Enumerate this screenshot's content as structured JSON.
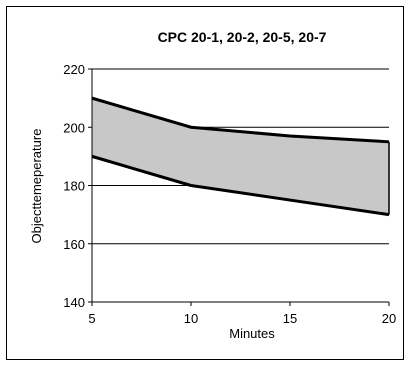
{
  "chart_data": {
    "type": "area",
    "title": "CPC 20-1, 20-2, 20-5, 20-7",
    "xlabel": "Minutes",
    "ylabel": "Objecttemeperature",
    "x": [
      5,
      10,
      15,
      20
    ],
    "xlim": [
      5,
      20
    ],
    "ylim": [
      140,
      220
    ],
    "xticks": [
      "5",
      "10",
      "15",
      "20"
    ],
    "yticks": [
      "140",
      "160",
      "180",
      "200",
      "220"
    ],
    "series": [
      {
        "values": [
          190,
          180,
          175,
          170
        ]
      },
      {
        "values": [
          210,
          200,
          197,
          195
        ]
      }
    ],
    "band_fill": "#c8c8c8",
    "grid": "horizontal"
  }
}
